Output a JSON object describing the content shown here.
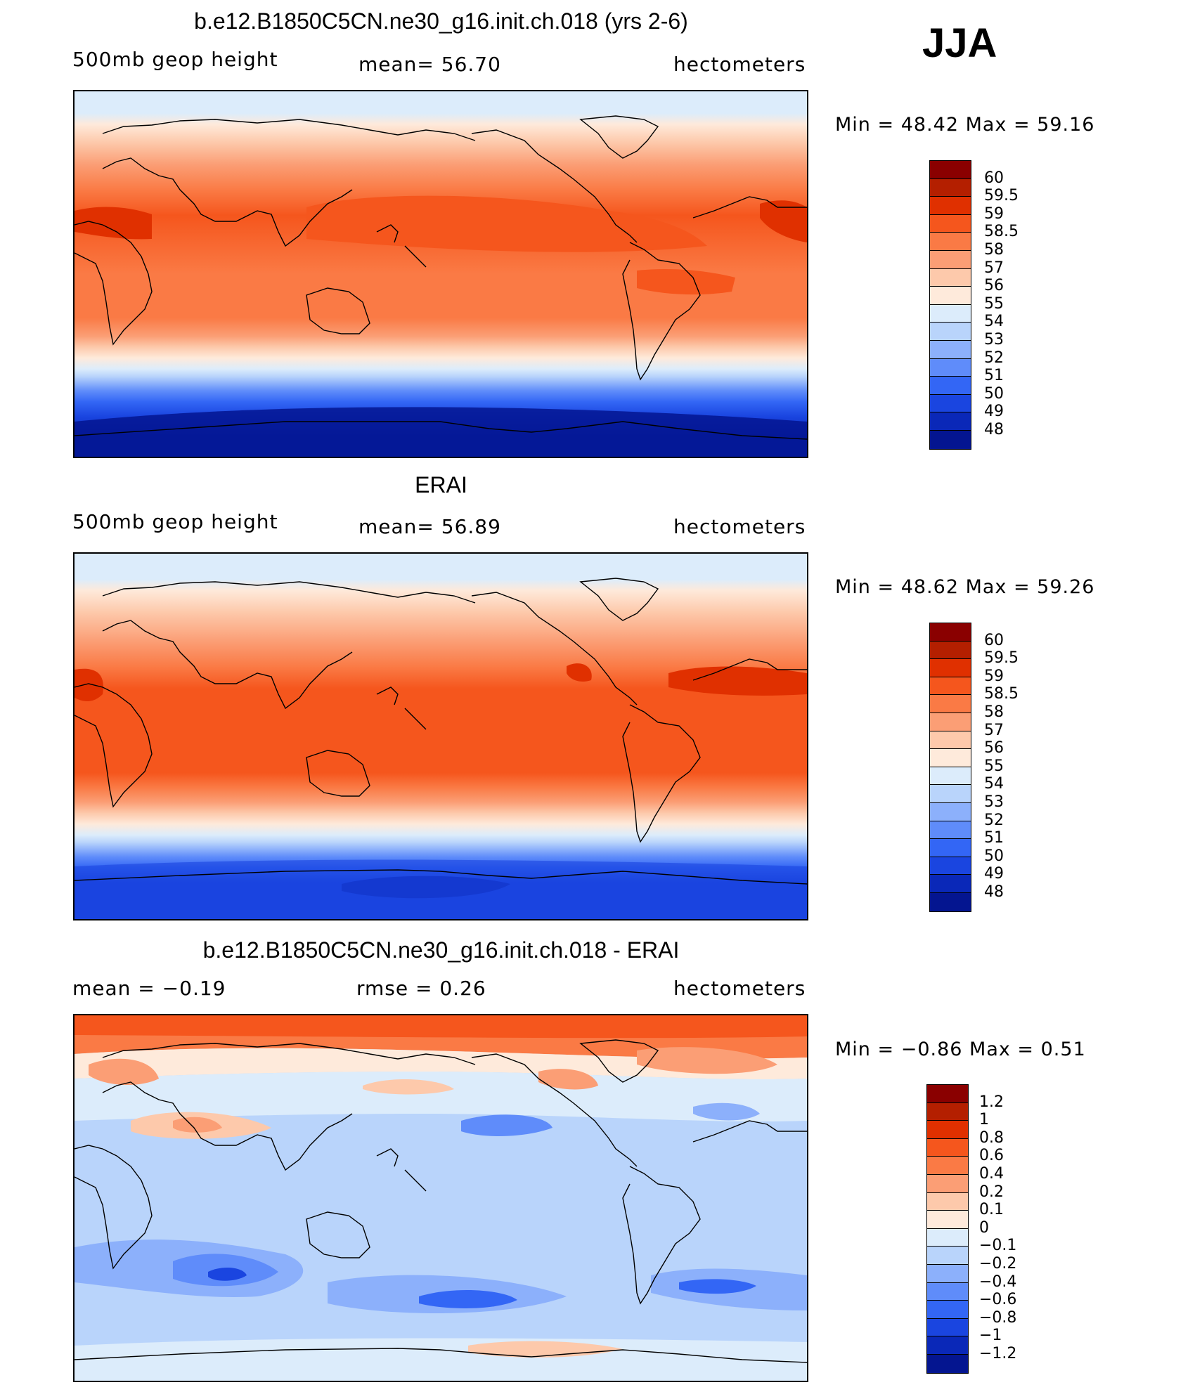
{
  "season": "JJA",
  "panels": [
    {
      "id": "model",
      "title": "b.e12.B1850C5CN.ne30_g16.init.ch.018 (yrs 2-6)",
      "left_label": "500mb  geop  height",
      "center_label": "mean=   56.70",
      "right_label": "hectometers",
      "minmax": "Min  =    48.42  Max  =    59.16",
      "colorbar": {
        "labels": [
          "60",
          "59.5",
          "59",
          "58.5",
          "58",
          "57",
          "56",
          "55",
          "54",
          "53",
          "52",
          "51",
          "50",
          "49",
          "48"
        ],
        "colors": [
          "#8a0000",
          "#b41f00",
          "#e03000",
          "#f5561d",
          "#fa7a45",
          "#fb9e75",
          "#fdc9ab",
          "#feeadb",
          "#dcecfb",
          "#b9d4fb",
          "#8cb0fb",
          "#5f8cfa",
          "#3366f5",
          "#1a45e0",
          "#0a28b8",
          "#041590"
        ]
      },
      "map_palette": [
        "#fdc9ab",
        "#fb9e75",
        "#fa7a45",
        "#f5561d",
        "#e03000",
        "#feeadb",
        "#dcecfb",
        "#b9d4fb",
        "#8cb0fb",
        "#5f8cfa",
        "#3366f5",
        "#1a45e0",
        "#0a28b8",
        "#041590"
      ]
    },
    {
      "id": "obs",
      "title": "ERAI",
      "left_label": "500mb  geop  height",
      "center_label": "mean=   56.89",
      "right_label": "hectometers",
      "minmax": "Min  =    48.62  Max  =    59.26",
      "colorbar": {
        "labels": [
          "60",
          "59.5",
          "59",
          "58.5",
          "58",
          "57",
          "56",
          "55",
          "54",
          "53",
          "52",
          "51",
          "50",
          "49",
          "48"
        ],
        "colors": [
          "#8a0000",
          "#b41f00",
          "#e03000",
          "#f5561d",
          "#fa7a45",
          "#fb9e75",
          "#fdc9ab",
          "#feeadb",
          "#dcecfb",
          "#b9d4fb",
          "#8cb0fb",
          "#5f8cfa",
          "#3366f5",
          "#1a45e0",
          "#0a28b8",
          "#041590"
        ]
      }
    },
    {
      "id": "diff",
      "title": "b.e12.B1850C5CN.ne30_g16.init.ch.018 - ERAI",
      "left_label": "mean  =    −0.19",
      "center_label": "rmse  =     0.26",
      "right_label": "hectometers",
      "minmax": "Min  =   −0.86  Max  =     0.51",
      "colorbar": {
        "labels": [
          "1.2",
          "1",
          "0.8",
          "0.6",
          "0.4",
          "0.2",
          "0.1",
          "0",
          "−0.1",
          "−0.2",
          "−0.4",
          "−0.6",
          "−0.8",
          "−1",
          "−1.2"
        ],
        "colors": [
          "#8a0000",
          "#b41f00",
          "#e03000",
          "#f5561d",
          "#fa7a45",
          "#fb9e75",
          "#fdc9ab",
          "#feeadb",
          "#dcecfb",
          "#b9d4fb",
          "#8cb0fb",
          "#5f8cfa",
          "#3366f5",
          "#1a45e0",
          "#0a28b8",
          "#041590"
        ]
      }
    }
  ]
}
